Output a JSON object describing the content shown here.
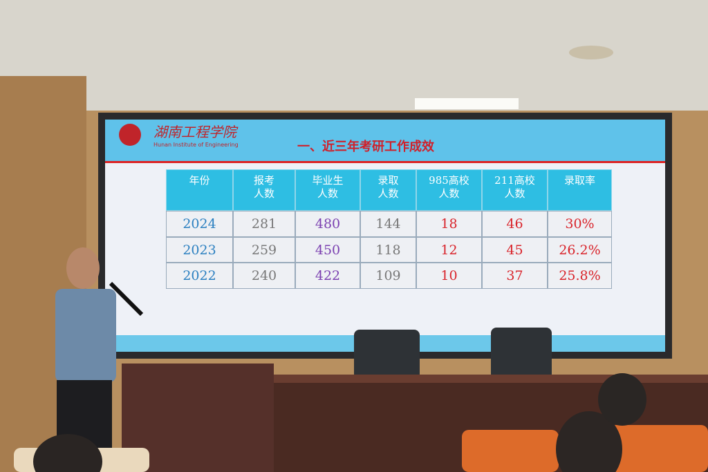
{
  "header": {
    "logo_text": "湖南工程学院",
    "logo_subtext": "Hunan Institute of Engineering",
    "title": "一、近三年考研工作成效"
  },
  "table": {
    "headers": [
      [
        "年份"
      ],
      [
        "报考",
        "人数"
      ],
      [
        "毕业生",
        "人数"
      ],
      [
        "录取",
        "人数"
      ],
      [
        "985高校",
        "人数"
      ],
      [
        "211高校",
        "人数"
      ],
      [
        "录取率"
      ]
    ],
    "rows": [
      [
        2024,
        281,
        480,
        144,
        18,
        46,
        "30%"
      ],
      [
        2023,
        259,
        450,
        118,
        12,
        45,
        "26.2%"
      ],
      [
        2022,
        240,
        422,
        109,
        10,
        37,
        "25.8%"
      ]
    ]
  }
}
